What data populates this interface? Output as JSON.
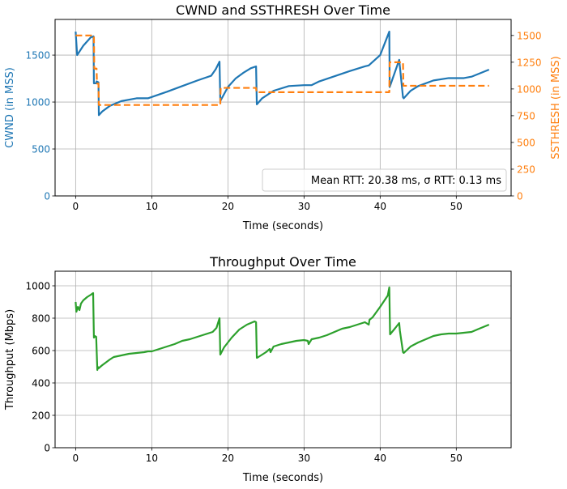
{
  "chart_data": [
    {
      "type": "line",
      "title": "CWND and SSTHRESH Over Time",
      "xlabel": "Time (seconds)",
      "ylabel": "CWND (in MSS)",
      "ylabel_right": "SSTHRESH (in MSS)",
      "xlim": [
        -2.7,
        57.2
      ],
      "ylim": [
        0,
        1880
      ],
      "ylim_right": [
        0,
        1650
      ],
      "x_ticks": [
        0,
        10,
        20,
        30,
        40,
        50
      ],
      "y_ticks": [
        0,
        500,
        1000,
        1500
      ],
      "y_ticks_right": [
        0,
        250,
        500,
        750,
        1000,
        1250,
        1500
      ],
      "grid": true,
      "legend_text": "Mean RTT: 20.38 ms, σ RTT: 0.13 ms",
      "legend_position": "lower right",
      "colors": {
        "cwnd": "#1f77b4",
        "ssthresh": "#ff7f0e"
      },
      "series": [
        {
          "axis": "left",
          "style": "solid",
          "x": [
            0,
            0.2,
            1,
            2,
            2.35,
            2.4,
            2.7,
            2.75,
            3.0,
            3.05,
            3.5,
            4.5,
            6,
            8,
            9.5,
            12,
            14,
            16,
            17.8,
            18.4,
            18.9,
            19.0,
            20,
            21,
            22,
            23,
            23.7,
            23.8,
            24.5,
            26,
            28,
            30,
            31,
            32,
            34,
            36,
            38,
            38.5,
            40,
            41.2,
            41.25,
            42.2,
            42.5,
            43.0,
            43.1,
            44,
            45,
            47,
            49,
            51,
            52,
            54.3
          ],
          "y": [
            1750,
            1500,
            1600,
            1690,
            1700,
            1200,
            1200,
            1220,
            1210,
            860,
            900,
            960,
            1010,
            1040,
            1040,
            1110,
            1170,
            1230,
            1280,
            1350,
            1430,
            1010,
            1160,
            1250,
            1310,
            1360,
            1380,
            975,
            1040,
            1120,
            1170,
            1180,
            1180,
            1220,
            1275,
            1330,
            1380,
            1390,
            1500,
            1750,
            1160,
            1380,
            1450,
            1050,
            1040,
            1120,
            1170,
            1230,
            1255,
            1255,
            1270,
            1345
          ]
        },
        {
          "axis": "right",
          "style": "dashed",
          "x": [
            0,
            2.4,
            2.45,
            2.75,
            2.8,
            3.0,
            3.05,
            19.0,
            19.05,
            23.7,
            23.75,
            41.2,
            41.25,
            43.0,
            43.05,
            54.3
          ],
          "y": [
            1500,
            1500,
            1190,
            1190,
            1050,
            1050,
            850,
            850,
            1010,
            1010,
            970,
            970,
            1250,
            1250,
            1030,
            1030
          ]
        }
      ]
    },
    {
      "type": "line",
      "title": "Throughput Over Time",
      "xlabel": "Time (seconds)",
      "ylabel": "Throughput (Mbps)",
      "xlim": [
        -2.7,
        57.2
      ],
      "ylim": [
        0,
        1090
      ],
      "x_ticks": [
        0,
        10,
        20,
        30,
        40,
        50
      ],
      "y_ticks": [
        0,
        200,
        400,
        600,
        800,
        1000
      ],
      "grid": true,
      "colors": {
        "throughput": "#2ca02c"
      },
      "series": [
        {
          "x": [
            0,
            0.1,
            0.3,
            0.5,
            0.7,
            1,
            1.5,
            2,
            2.3,
            2.4,
            2.5,
            2.7,
            2.85,
            2.9,
            3.0,
            3.5,
            4.5,
            5,
            6,
            7,
            8,
            9,
            9.5,
            10,
            11,
            12,
            13,
            14,
            15,
            16,
            17,
            18,
            18.5,
            18.9,
            19.0,
            19.5,
            20.5,
            21.5,
            22.5,
            23.5,
            23.7,
            23.8,
            24.0,
            25,
            25.5,
            25.6,
            26,
            27,
            28,
            29,
            30,
            30.5,
            30.6,
            31,
            32,
            33,
            34,
            35,
            36,
            37,
            38,
            38.5,
            38.6,
            39,
            40,
            41,
            41.2,
            41.3,
            42,
            42.5,
            42.6,
            43.0,
            43.1,
            44,
            45,
            46,
            47,
            48,
            49,
            50,
            51,
            52,
            53,
            54.3
          ],
          "y": [
            900,
            840,
            870,
            850,
            890,
            910,
            930,
            945,
            955,
            680,
            690,
            685,
            480,
            500,
            490,
            510,
            545,
            560,
            570,
            580,
            585,
            590,
            595,
            595,
            610,
            625,
            640,
            660,
            670,
            685,
            700,
            715,
            740,
            800,
            575,
            620,
            680,
            730,
            760,
            780,
            775,
            555,
            560,
            590,
            610,
            590,
            625,
            640,
            650,
            660,
            665,
            660,
            640,
            670,
            680,
            695,
            715,
            735,
            745,
            760,
            775,
            760,
            790,
            805,
            870,
            940,
            990,
            700,
            740,
            770,
            720,
            590,
            585,
            625,
            650,
            670,
            690,
            700,
            705,
            705,
            710,
            715,
            735,
            760
          ]
        }
      ]
    }
  ]
}
